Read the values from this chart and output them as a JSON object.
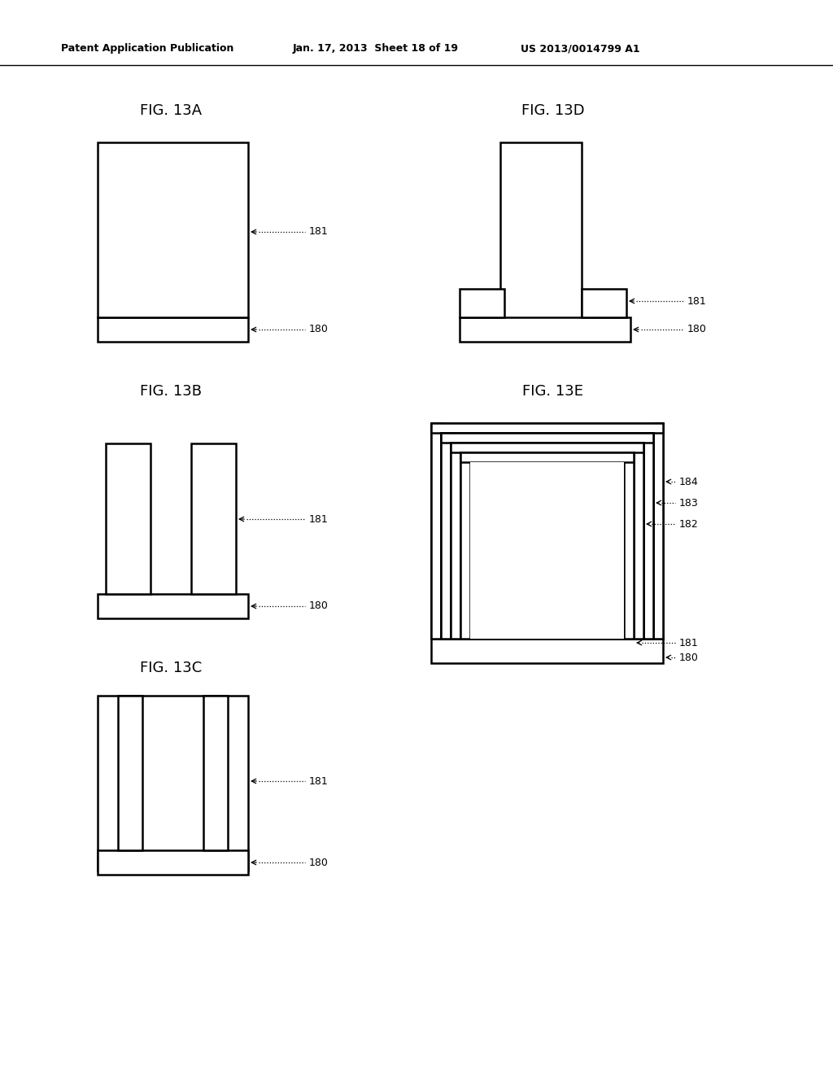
{
  "bg_color": "#ffffff",
  "line_color": "#000000",
  "header_left": "Patent Application Publication",
  "header_center": "Jan. 17, 2013  Sheet 18 of 19",
  "header_right": "US 2013/0014799 A1",
  "fig_title_fontsize": 13,
  "label_fontsize": 9,
  "header_fontsize": 9
}
